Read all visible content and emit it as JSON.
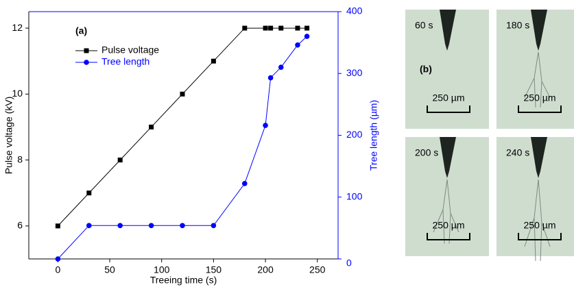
{
  "chart_data": {
    "type": "line",
    "annotation": "(a)",
    "x_label": "Treeing time (s)",
    "y_label": "Pulse voltage (kV)",
    "y2_label": "Tree length (µm)",
    "x": [
      0,
      30,
      60,
      90,
      120,
      150,
      180,
      200,
      205,
      215,
      231,
      240
    ],
    "series": [
      {
        "name": "Pulse voltage",
        "color": "#000000",
        "marker": "square",
        "values": [
          6,
          7,
          8,
          9,
          10,
          11,
          12,
          12,
          12,
          12,
          12,
          12
        ]
      },
      {
        "name": "Tree length",
        "color": "#0000ff",
        "marker": "circle",
        "axis": "y2",
        "values": [
          0,
          54,
          54,
          54,
          54,
          54,
          122,
          216,
          293,
          310,
          346,
          360
        ]
      }
    ],
    "xlim": [
      -28,
      270
    ],
    "xticks": [
      0,
      50,
      100,
      150,
      200,
      250
    ],
    "ylim": [
      5,
      12.5
    ],
    "yticks": [
      6,
      8,
      10,
      12
    ],
    "y2lim": [
      0,
      400
    ],
    "y2ticks": [
      0,
      100,
      200,
      300,
      400
    ],
    "legend": "upper left",
    "grid": false
  },
  "photos": {
    "label": "(b)",
    "panels": [
      {
        "time": "60 s",
        "scale": "250 µm"
      },
      {
        "time": "180 s",
        "scale": "250 µm"
      },
      {
        "time": "200 s",
        "scale": "250 µm"
      },
      {
        "time": "240 s",
        "scale": "250 µm"
      }
    ]
  }
}
